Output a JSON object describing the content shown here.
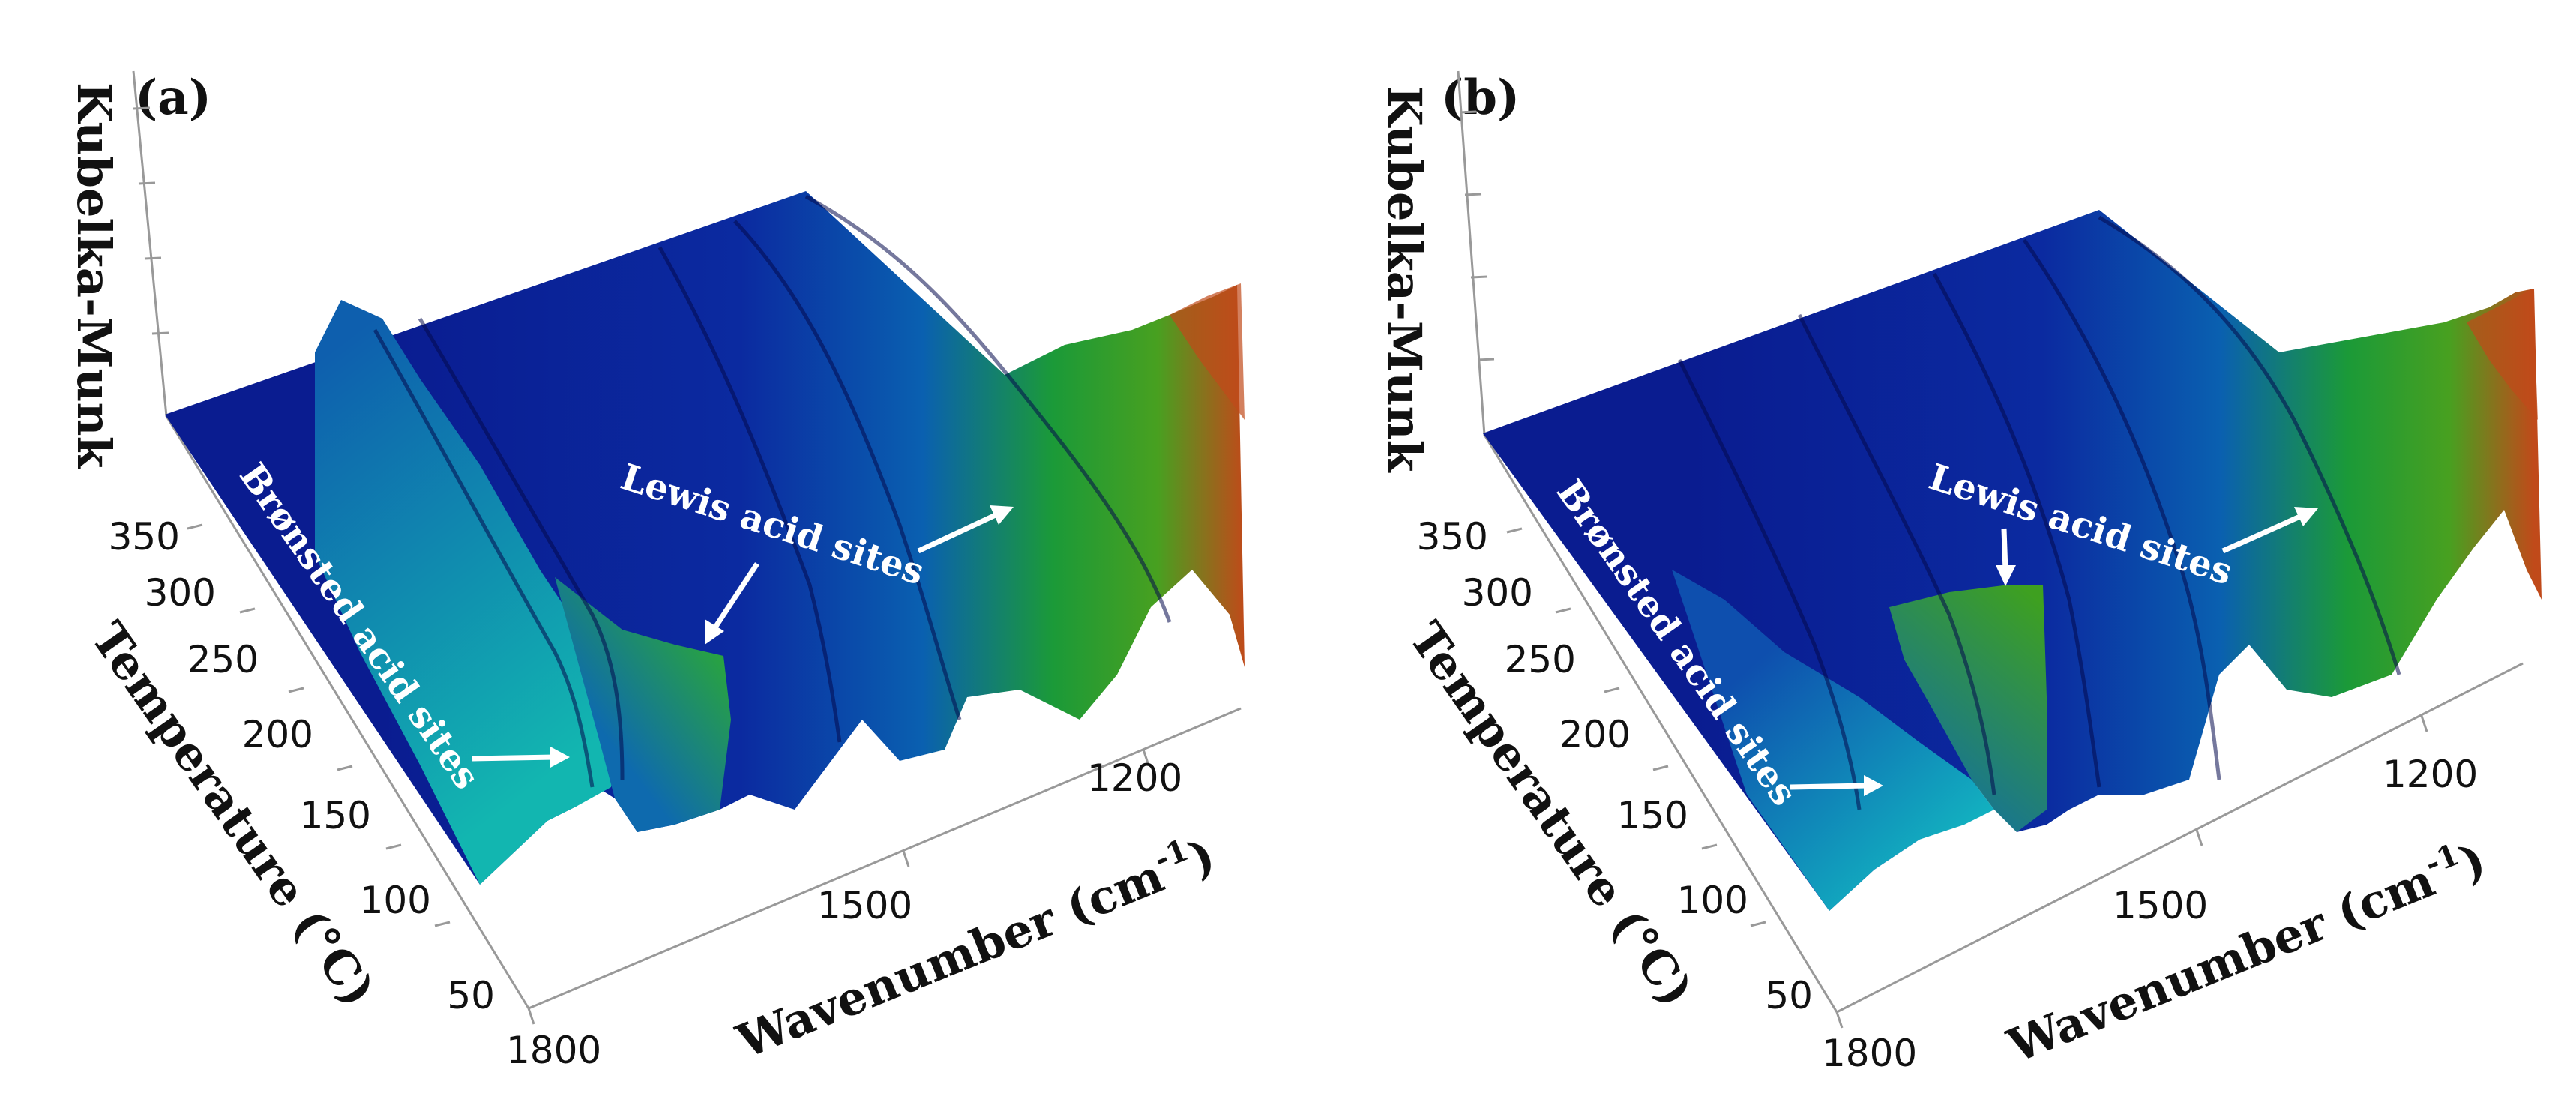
{
  "chart_data": [
    {
      "type": "surface",
      "panel": "(a)",
      "zlabel": "Kubelka-Munk",
      "ylabel": "Temperature (°C)",
      "xlabel": "Wavenumber (cm⁻¹)",
      "xlabel_main": "Wavenumber (cm",
      "xlabel_sup": "-1",
      "xlabel_close": ")",
      "temperature_ticks": [
        "350",
        "300",
        "250",
        "200",
        "150",
        "100",
        "50"
      ],
      "wavenumber_ticks": [
        "1800",
        "1500",
        "1200"
      ],
      "annotations": [
        "Brønsted acid sites",
        "Lewis acid sites"
      ],
      "colormap": [
        "#0a1a8c",
        "#0b6fae",
        "#1f9d2b",
        "#c8501a"
      ]
    },
    {
      "type": "surface",
      "panel": "(b)",
      "zlabel": "Kubelka-Munk",
      "ylabel": "Temperature (°C)",
      "xlabel": "Wavenumber (cm⁻¹)",
      "xlabel_main": "Wavenumber (cm",
      "xlabel_sup": "-1",
      "xlabel_close": ")",
      "temperature_ticks": [
        "350",
        "300",
        "250",
        "200",
        "150",
        "100",
        "50"
      ],
      "wavenumber_ticks": [
        "1800",
        "1500",
        "1200"
      ],
      "annotations": [
        "Brønsted acid sites",
        "Lewis acid sites"
      ],
      "colormap": [
        "#0a1a8c",
        "#0b6fae",
        "#1f9d2b",
        "#c8501a"
      ]
    }
  ]
}
